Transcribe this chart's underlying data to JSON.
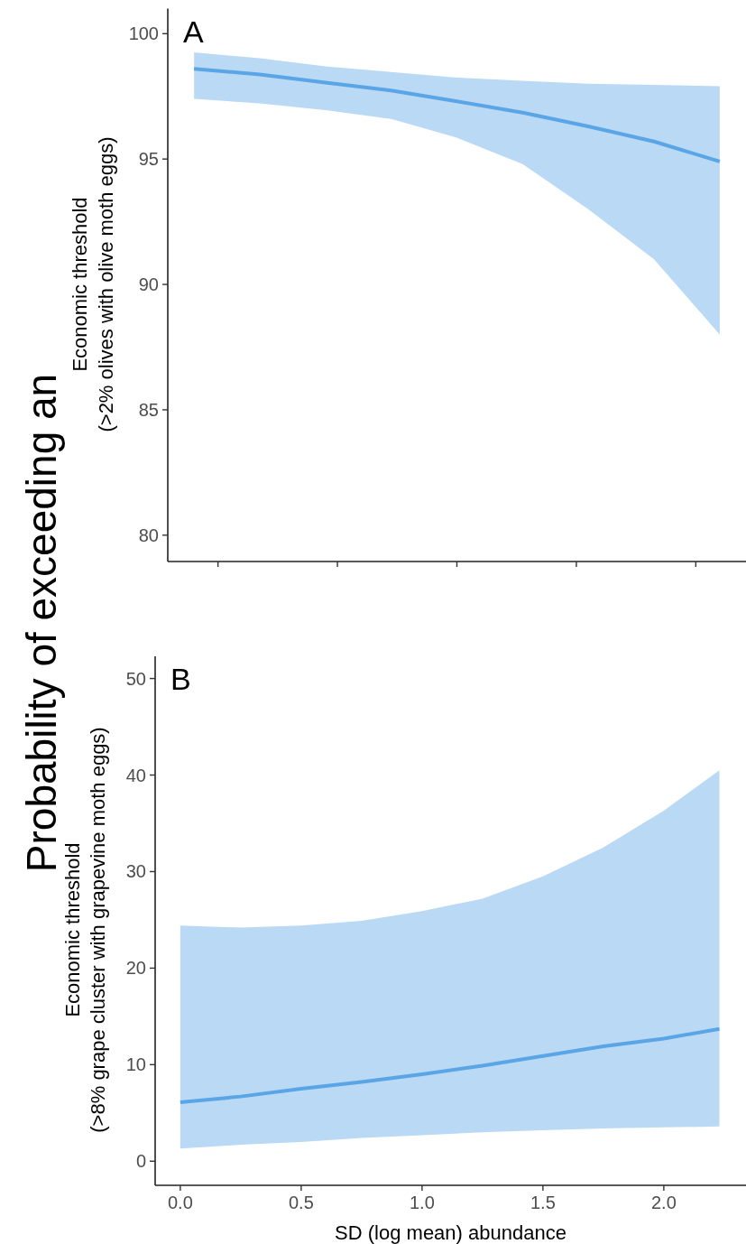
{
  "chart_data": [
    {
      "type": "line",
      "title": "A",
      "ylabel": "Economic threshold\n(>2% olives with olive moth eggs)",
      "annotations": [
        "Probability of exceeding an"
      ],
      "categories": [
        null,
        null,
        null,
        null,
        null,
        null,
        null,
        null,
        null
      ],
      "ylim": [
        78.95,
        101
      ],
      "yticks": [
        80,
        85,
        90,
        95,
        100
      ],
      "tick_labels": "y",
      "grid": false,
      "series": [
        {
          "color": "#5aa5e6",
          "values": [
            98.6,
            98.37,
            98.05,
            97.73,
            97.3,
            96.85,
            96.3,
            95.7,
            94.9
          ],
          "lower": [
            97.4,
            97.22,
            96.95,
            96.6,
            95.85,
            94.8,
            93.0,
            91.0,
            88.0
          ],
          "upper": [
            99.25,
            99.02,
            98.7,
            98.47,
            98.25,
            98.12,
            98.0,
            97.96,
            97.9
          ]
        }
      ]
    },
    {
      "type": "line",
      "title": "B",
      "ylabel": "Economic threshold\n(>8% grape cluster with grapevine moth eggs)",
      "xlabel": "SD (log mean) abundance",
      "xlim": [
        -0.104,
        2.34
      ],
      "xticks": [
        {
          "value": 0,
          "label": "0.0"
        },
        {
          "value": 0.5,
          "label": "0.5"
        },
        {
          "value": 1,
          "label": "1.0"
        },
        {
          "value": 1.5,
          "label": "1.5"
        },
        {
          "value": 2,
          "label": "2.0"
        }
      ],
      "ylim": [
        -2.5,
        52.3
      ],
      "yticks": [
        0,
        10,
        20,
        30,
        40,
        50
      ],
      "grid": false,
      "series": [
        {
          "color": "#5aa5e6",
          "x": [
            0,
            0.25,
            0.5,
            0.75,
            1.0,
            1.25,
            1.5,
            1.75,
            2.0,
            2.23
          ],
          "values": [
            6.1,
            6.7,
            7.5,
            8.2,
            9.0,
            9.9,
            10.9,
            11.9,
            12.7,
            13.7
          ],
          "lower": [
            1.3,
            1.7,
            2.0,
            2.4,
            2.7,
            3.0,
            3.2,
            3.4,
            3.5,
            3.6
          ],
          "upper": [
            24.4,
            24.2,
            24.4,
            24.9,
            25.9,
            27.2,
            29.5,
            32.5,
            36.3,
            40.5
          ]
        }
      ]
    }
  ]
}
